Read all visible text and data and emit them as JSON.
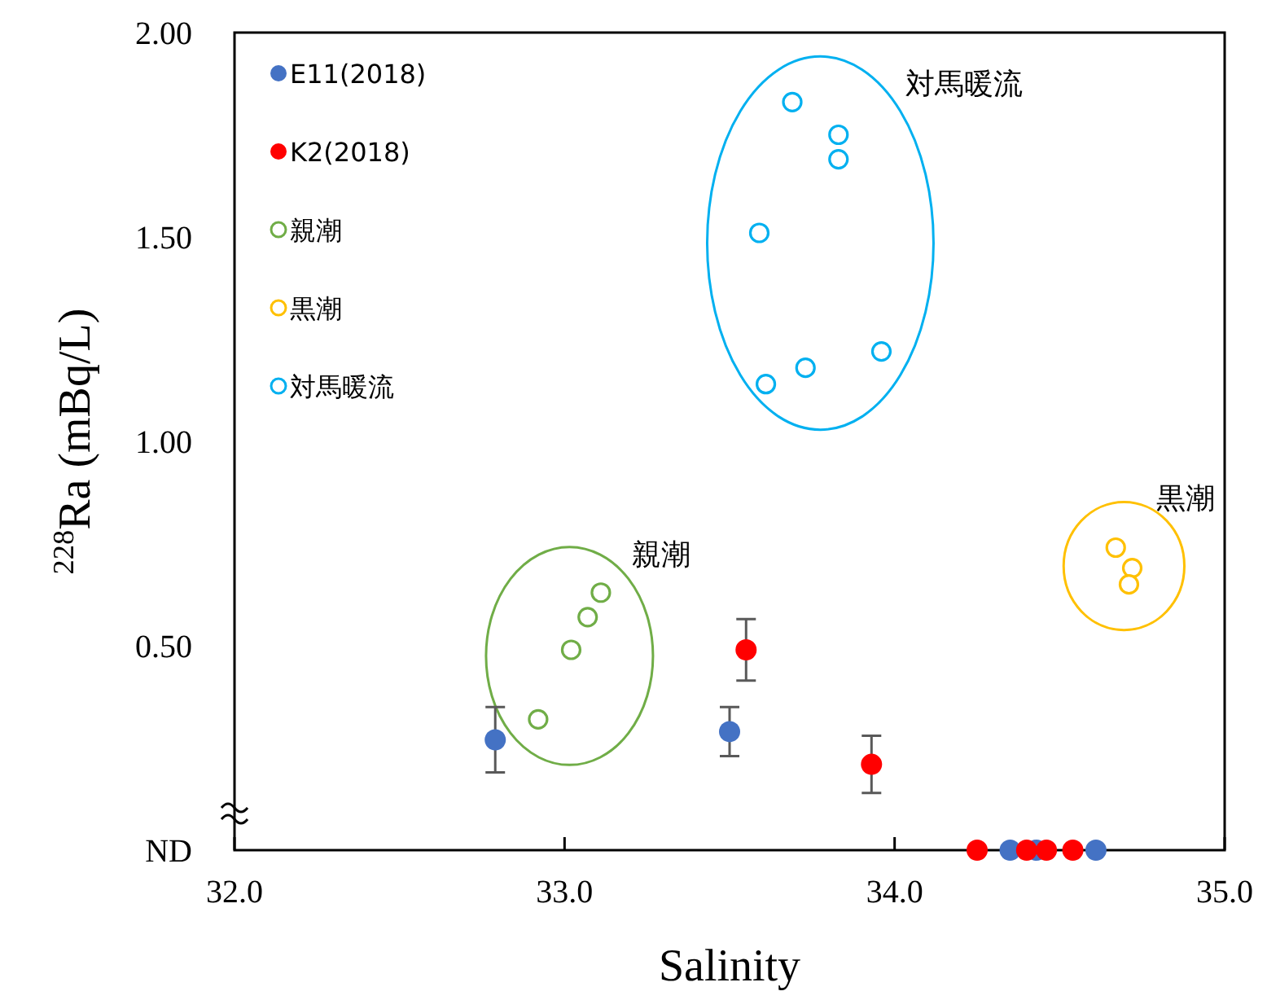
{
  "chart_data": {
    "type": "scatter",
    "xlabel": "Salinity",
    "ylabel": "$^{228}$Ra (mBq/L)",
    "xlim": [
      32.0,
      35.0
    ],
    "ylim": [
      0,
      2
    ],
    "xticks": [
      {
        "value": 32,
        "label": "32.0"
      },
      {
        "value": 33,
        "label": "33.0"
      },
      {
        "value": 34,
        "label": "34.0"
      },
      {
        "value": 35,
        "label": "35.0"
      }
    ],
    "yticks": [
      {
        "value": 0,
        "label": "ND"
      },
      {
        "value": 0.5,
        "label": "0.50"
      },
      {
        "value": 1,
        "label": "1.00"
      },
      {
        "value": 1.5,
        "label": "1.50"
      },
      {
        "value": 2,
        "label": "2.00"
      }
    ],
    "grid": false,
    "legend": "top left",
    "marker": "circle",
    "series": [
      {
        "name": "E11(2018)",
        "color": "#4472c4",
        "x": [
          32.79,
          33.5,
          34.35,
          34.43,
          34.61
        ],
        "values": [
          0.27,
          0.29,
          0,
          0,
          0
        ],
        "errors": [
          0.08,
          0.06,
          null,
          null,
          null
        ]
      },
      {
        "name": "K2(2018)",
        "color": "#ff0000",
        "x": [
          33.55,
          33.93,
          34.25,
          34.4,
          34.46,
          34.54
        ],
        "values": [
          0.49,
          0.21,
          0,
          0,
          0,
          0
        ],
        "errors": [
          0.075,
          0.07,
          null,
          null,
          null,
          null
        ]
      },
      {
        "name": "親潮",
        "color": "#70ad47",
        "marker": "open circle",
        "x": [
          33.11,
          33.07,
          33.02,
          32.92
        ],
        "values": [
          0.63,
          0.57,
          0.49,
          0.32
        ]
      },
      {
        "name": "黒潮",
        "color": "#ffc000",
        "marker": "open circle",
        "x": [
          34.67,
          34.72,
          34.71
        ],
        "values": [
          0.74,
          0.69,
          0.65
        ]
      },
      {
        "name": "対馬暖流",
        "color": "#00b0f0",
        "marker": "open circle",
        "x": [
          33.69,
          33.83,
          33.83,
          33.59,
          33.96,
          33.73,
          33.61
        ],
        "values": [
          1.83,
          1.75,
          1.69,
          1.51,
          1.22,
          1.18,
          1.14
        ]
      }
    ],
    "annotations": [
      "親潮",
      "黒潮",
      "対馬暖流"
    ]
  }
}
